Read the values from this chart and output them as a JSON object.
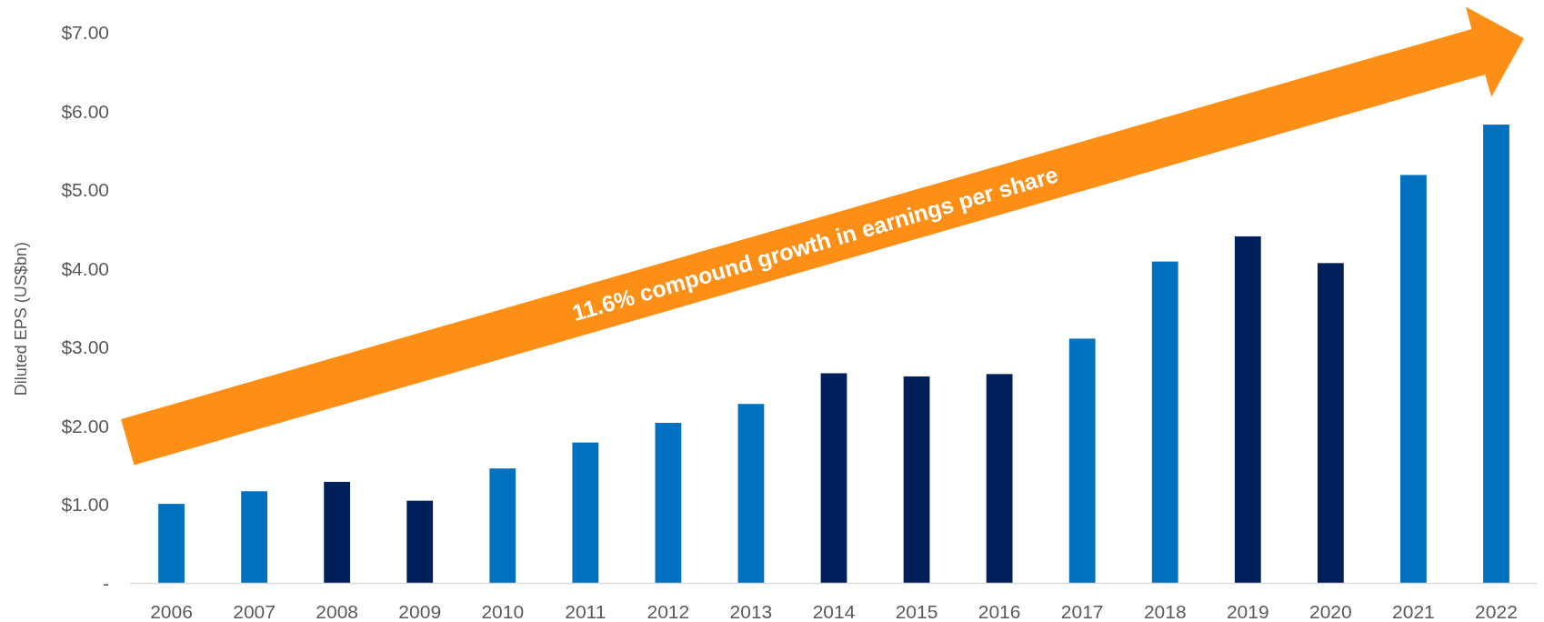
{
  "chart_data": {
    "type": "bar",
    "ylabel": "Diluted EPS (US$bn)",
    "annotations": [
      "11.6% compound growth in earnings per share"
    ],
    "categories": [
      "2006",
      "2007",
      "2008",
      "2009",
      "2010",
      "2011",
      "2012",
      "2013",
      "2014",
      "2015",
      "2016",
      "2017",
      "2018",
      "2019",
      "2020",
      "2021",
      "2022"
    ],
    "values": [
      1.01,
      1.17,
      1.29,
      1.05,
      1.46,
      1.79,
      2.04,
      2.28,
      2.67,
      2.63,
      2.66,
      3.11,
      4.09,
      4.41,
      4.07,
      5.19,
      5.83
    ],
    "colors": [
      "#0070c0",
      "#0070c0",
      "#001f5b",
      "#001f5b",
      "#0070c0",
      "#0070c0",
      "#0070c0",
      "#0070c0",
      "#001f5b",
      "#001f5b",
      "#001f5b",
      "#0070c0",
      "#0070c0",
      "#001f5b",
      "#001f5b",
      "#0070c0",
      "#0070c0"
    ],
    "ylim": [
      0,
      7
    ],
    "yticks": [
      {
        "value": 0,
        "label": "-"
      },
      {
        "value": 1,
        "label": "$1.00"
      },
      {
        "value": 2,
        "label": "$2.00"
      },
      {
        "value": 3,
        "label": "$3.00"
      },
      {
        "value": 4,
        "label": "$4.00"
      },
      {
        "value": 5,
        "label": "$5.00"
      },
      {
        "value": 6,
        "label": "$6.00"
      },
      {
        "value": 7,
        "label": "$7.00"
      }
    ]
  }
}
